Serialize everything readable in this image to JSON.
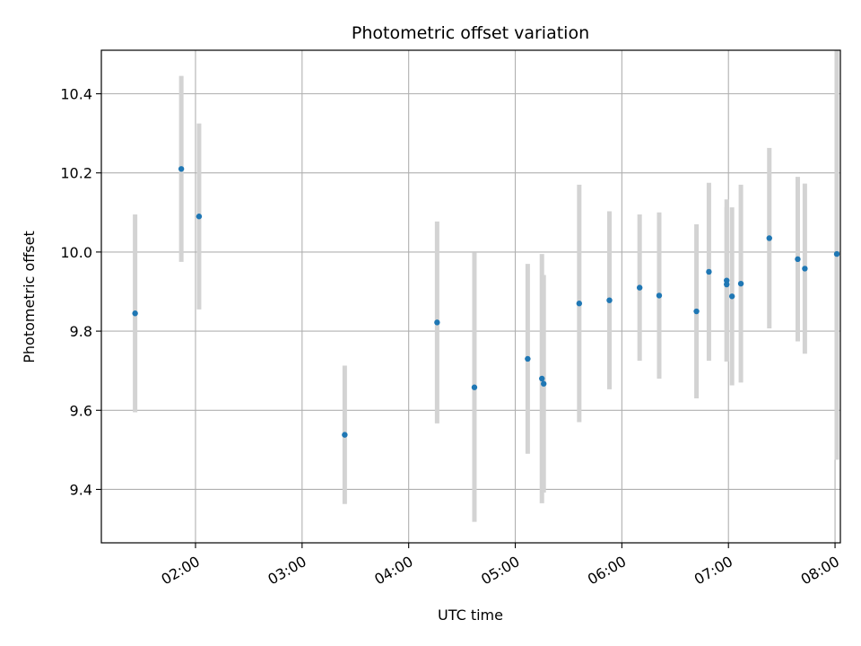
{
  "chart_data": {
    "type": "scatter",
    "title": "Photometric offset variation",
    "xlabel": "UTC time",
    "ylabel": "Photometric offset",
    "x_ticks": [
      "02:00",
      "03:00",
      "04:00",
      "05:00",
      "06:00",
      "07:00",
      "08:00"
    ],
    "y_ticks": [
      "9.4",
      "9.6",
      "9.8",
      "10.0",
      "10.2",
      "10.4"
    ],
    "xlim": [
      "01:07",
      "08:03"
    ],
    "ylim": [
      9.265,
      10.51
    ],
    "grid": true,
    "colors": {
      "marker": "#1f77b4",
      "errorbar": "#d3d3d3",
      "grid": "#b0b0b0",
      "axes": "#000000"
    },
    "points": [
      {
        "x": "01:26",
        "y": 9.845,
        "yerr": 0.25
      },
      {
        "x": "01:52",
        "y": 10.21,
        "yerr": 0.235
      },
      {
        "x": "02:02",
        "y": 10.09,
        "yerr": 0.235
      },
      {
        "x": "03:24",
        "y": 9.538,
        "yerr": 0.175
      },
      {
        "x": "04:16",
        "y": 9.822,
        "yerr": 0.255
      },
      {
        "x": "04:37",
        "y": 9.658,
        "yerr": 0.34
      },
      {
        "x": "05:07",
        "y": 9.73,
        "yerr": 0.24
      },
      {
        "x": "05:15",
        "y": 9.68,
        "yerr": 0.315
      },
      {
        "x": "05:16",
        "y": 9.667,
        "yerr": 0.275
      },
      {
        "x": "05:36",
        "y": 9.87,
        "yerr": 0.3
      },
      {
        "x": "05:53",
        "y": 9.878,
        "yerr": 0.225
      },
      {
        "x": "06:10",
        "y": 9.91,
        "yerr": 0.185
      },
      {
        "x": "06:21",
        "y": 9.89,
        "yerr": 0.21
      },
      {
        "x": "06:42",
        "y": 9.85,
        "yerr": 0.22
      },
      {
        "x": "06:49",
        "y": 9.95,
        "yerr": 0.225
      },
      {
        "x": "06:59",
        "y": 9.928,
        "yerr": 0.205
      },
      {
        "x": "06:59",
        "y": 9.918,
        "yerr": 0.195
      },
      {
        "x": "07:02",
        "y": 9.888,
        "yerr": 0.225
      },
      {
        "x": "07:07",
        "y": 9.92,
        "yerr": 0.25
      },
      {
        "x": "07:23",
        "y": 10.035,
        "yerr": 0.228
      },
      {
        "x": "07:39",
        "y": 9.982,
        "yerr": 0.208
      },
      {
        "x": "07:43",
        "y": 9.958,
        "yerr": 0.215
      },
      {
        "x": "08:01",
        "y": 9.995,
        "yerr": 0.52
      }
    ]
  }
}
